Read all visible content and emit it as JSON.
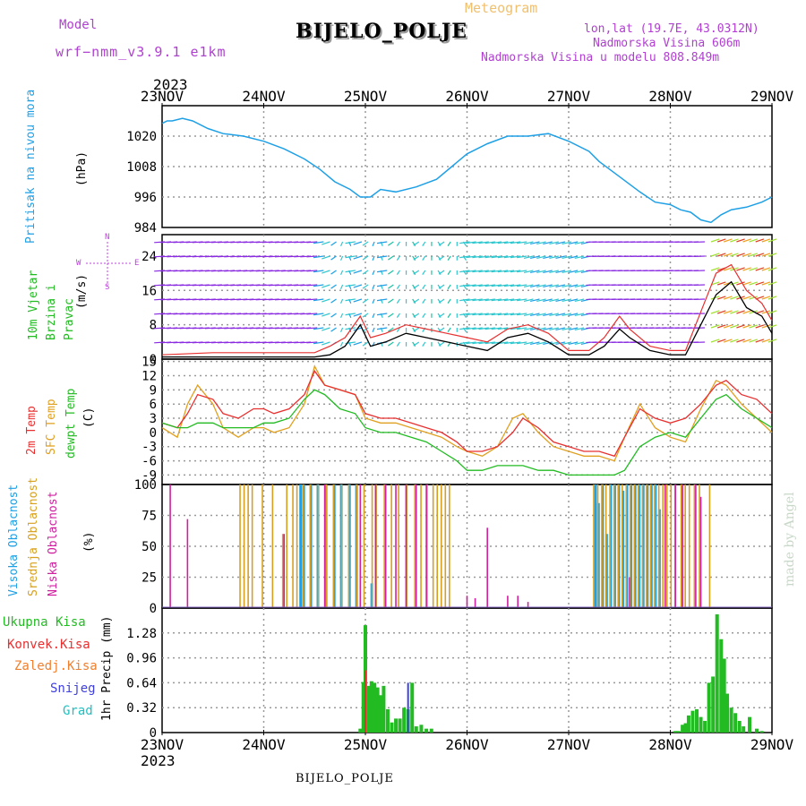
{
  "header": {
    "model_label": "Model",
    "model_name": "wrf−nmm_v3.9.1  e1km",
    "station": "BIJELO_POLJE",
    "product": "Meteogram",
    "lonlat": "lon,lat (19.7E, 43.0312N)",
    "altitude": "Nadmorska Visina 606m",
    "model_altitude": "Nadmorska Visina u modelu 808.849m",
    "year_top": "2023",
    "year_bottom": "2023",
    "footer_station": "BIJELO_POLJE",
    "credit": "made by Angel"
  },
  "colors": {
    "pressure": "#1ea0e6",
    "wind_label": "#22bb22",
    "wind_dir": "#c040e0",
    "temp2m": "#e83030",
    "sfc": "#e0a020",
    "dewpt": "#22bb22",
    "high_cloud": "#1ea0e6",
    "mid_cloud": "#d8a020",
    "low_cloud": "#d020a0",
    "total": "#22bb22",
    "conv": "#e83030",
    "frozen": "#f08030",
    "snow": "#4040e0",
    "graupel": "#20c0c0",
    "grid": "#999999"
  },
  "time_axis": {
    "ticks": [
      "23NOV",
      "24NOV",
      "25NOV",
      "26NOV",
      "27NOV",
      "28NOV",
      "29NOV"
    ]
  },
  "chart_data": [
    {
      "type": "line",
      "panel": "pressure",
      "ylabel_left": "Pritisak na nivou mora",
      "ylabel_unit": "(hPa)",
      "yticks": [
        984,
        996,
        1008,
        1020
      ],
      "ylim": [
        984,
        1032
      ],
      "x_days": [
        0,
        0.05,
        0.1,
        0.2,
        0.3,
        0.45,
        0.6,
        0.8,
        1.0,
        1.2,
        1.4,
        1.55,
        1.7,
        1.85,
        1.95,
        2.05,
        2.15,
        2.3,
        2.5,
        2.7,
        2.85,
        3.0,
        3.2,
        3.4,
        3.6,
        3.8,
        4.0,
        4.2,
        4.3,
        4.5,
        4.7,
        4.85,
        5.0,
        5.1,
        5.2,
        5.3,
        5.4,
        5.5,
        5.6,
        5.75,
        5.9,
        6.0
      ],
      "series": [
        {
          "values": [
            1025,
            1026,
            1026,
            1027,
            1026,
            1023,
            1021,
            1020,
            1018,
            1015,
            1011,
            1007,
            1002,
            999,
            996,
            996,
            999,
            998,
            1000,
            1003,
            1008,
            1013,
            1017,
            1020,
            1020,
            1021,
            1018,
            1014,
            1010,
            1004,
            998,
            994,
            993,
            991,
            990,
            987,
            986,
            989,
            991,
            992,
            994,
            996
          ]
        }
      ]
    },
    {
      "type": "line",
      "panel": "wind",
      "ylabel_left": "10m Vjetar Brzina i Pravac",
      "ylabel_unit": "(m/s)",
      "compass": {
        "n": "N",
        "s": "S",
        "e": "E",
        "w": "W"
      },
      "yticks": [
        0,
        8,
        16,
        24
      ],
      "ylim": [
        0,
        29
      ],
      "x_days": [
        0,
        0.5,
        1.0,
        1.5,
        1.65,
        1.8,
        1.95,
        2.05,
        2.2,
        2.4,
        2.6,
        2.8,
        3.0,
        3.2,
        3.4,
        3.6,
        3.8,
        4.0,
        4.2,
        4.35,
        4.5,
        4.6,
        4.8,
        5.0,
        5.15,
        5.3,
        5.45,
        5.6,
        5.75,
        5.9,
        6.0
      ],
      "series": [
        {
          "name": "speed",
          "values": [
            0.5,
            0.5,
            0.5,
            0.5,
            1,
            3,
            8,
            3,
            4,
            6,
            5,
            4,
            3,
            2,
            5,
            6,
            4,
            1,
            1,
            3,
            7,
            5,
            2,
            1,
            1,
            8,
            15,
            18,
            12,
            10,
            6
          ]
        },
        {
          "name": "gust",
          "values": [
            1,
            1.5,
            1.5,
            1.5,
            3,
            5,
            10,
            5,
            6,
            8,
            7,
            6,
            5,
            4,
            7,
            8,
            6,
            2,
            2,
            5,
            10,
            7,
            3,
            2,
            2,
            11,
            20,
            22,
            16,
            13,
            9
          ]
        }
      ]
    },
    {
      "type": "line",
      "panel": "temperature",
      "ylabel_left": [
        "2m Temp",
        "SFC Temp",
        "dewpt Temp"
      ],
      "ylabel_unit": "(C)",
      "yticks": [
        -9,
        -6,
        -3,
        0,
        3,
        6,
        9,
        12,
        15
      ],
      "ylim": [
        -11,
        15.5
      ],
      "x_days": [
        0,
        0.15,
        0.25,
        0.35,
        0.5,
        0.6,
        0.75,
        0.9,
        1.0,
        1.1,
        1.25,
        1.4,
        1.5,
        1.6,
        1.75,
        1.9,
        2.0,
        2.15,
        2.3,
        2.45,
        2.6,
        2.75,
        2.9,
        3.0,
        3.15,
        3.3,
        3.45,
        3.55,
        3.7,
        3.85,
        4.0,
        4.15,
        4.3,
        4.45,
        4.55,
        4.7,
        4.85,
        5.0,
        5.15,
        5.3,
        5.45,
        5.55,
        5.7,
        5.85,
        6.0
      ],
      "series": [
        {
          "name": "2m Temp",
          "values": [
            2,
            1,
            4,
            8,
            7,
            4,
            3,
            5,
            5,
            4,
            5,
            8,
            13,
            10,
            9,
            8,
            4,
            3,
            3,
            2,
            1,
            0,
            -2,
            -4,
            -4,
            -3,
            0,
            3,
            1,
            -2,
            -3,
            -4,
            -4,
            -5,
            -1,
            5,
            3,
            2,
            3,
            6,
            10,
            11,
            8,
            7,
            4
          ]
        },
        {
          "name": "SFC Temp",
          "values": [
            1,
            -1,
            6,
            10,
            6,
            1,
            -1,
            1,
            1,
            0,
            1,
            6,
            14,
            10,
            9,
            8,
            3,
            2,
            2,
            1,
            0,
            -1,
            -3,
            -4,
            -5,
            -3,
            3,
            4,
            0,
            -3,
            -4,
            -5,
            -5,
            -6,
            -1,
            6,
            1,
            -1,
            -2,
            5,
            11,
            10,
            6,
            3,
            0
          ]
        },
        {
          "name": "dewpt Temp",
          "values": [
            2,
            1,
            1,
            2,
            2,
            1,
            1,
            1,
            2,
            2,
            3,
            7,
            9,
            8,
            5,
            4,
            1,
            0,
            0,
            -1,
            -2,
            -4,
            -6,
            -8,
            -8,
            -7,
            -7,
            -7,
            -8,
            -8,
            -9,
            -9,
            -9,
            -9,
            -8,
            -3,
            -1,
            0,
            -1,
            3,
            7,
            8,
            5,
            3,
            1
          ]
        }
      ]
    },
    {
      "type": "bar",
      "panel": "cloud",
      "ylabel_left": [
        "Visoka Oblacnost",
        "Srednja Oblacnost",
        "Niska Oblacnost"
      ],
      "ylabel_unit": "(%)",
      "yticks": [
        0,
        25,
        50,
        75,
        100
      ],
      "ylim": [
        0,
        100
      ],
      "legend": [
        "Visoka Oblacnost",
        "Srednja Oblacnost",
        "Niska Oblacnost"
      ],
      "series": [
        {
          "name": "Visoka Oblacnost",
          "x_days": [
            1.35,
            1.38,
            1.45,
            1.52,
            1.6,
            1.68,
            1.75,
            1.83,
            1.9,
            2.05,
            4.25,
            4.28,
            4.32,
            4.36,
            4.4,
            4.44,
            4.48,
            4.52,
            4.56,
            4.6,
            4.64,
            4.68,
            4.72,
            4.76,
            4.8,
            4.84,
            4.88
          ],
          "values": [
            100,
            100,
            100,
            100,
            100,
            100,
            100,
            100,
            100,
            20,
            100,
            85,
            100,
            60,
            100,
            100,
            100,
            95,
            100,
            100,
            100,
            100,
            100,
            100,
            100,
            100,
            80
          ]
        },
        {
          "name": "Srednja Oblacnost",
          "x_days": [
            0.78,
            0.82,
            0.86,
            0.9,
            1.0,
            1.1,
            1.2,
            1.24,
            1.3,
            1.34,
            1.4,
            1.47,
            1.55,
            1.63,
            1.7,
            1.78,
            1.85,
            1.93,
            2.0,
            2.08,
            2.12,
            2.2,
            2.27,
            2.34,
            2.42,
            2.5,
            2.56,
            2.62,
            2.68,
            2.72,
            2.76,
            2.8,
            2.84,
            4.26,
            4.3,
            4.34,
            4.38,
            4.42,
            4.46,
            4.5,
            4.54,
            4.58,
            4.62,
            4.66,
            4.7,
            4.74,
            4.78,
            4.82,
            4.86,
            4.9,
            4.94,
            4.98,
            5.02,
            5.06,
            5.12,
            5.16,
            5.2,
            5.25,
            5.3,
            5.4
          ],
          "values": [
            100,
            100,
            100,
            100,
            100,
            100,
            60,
            100,
            100,
            100,
            100,
            100,
            100,
            100,
            100,
            100,
            100,
            100,
            100,
            100,
            100,
            100,
            100,
            100,
            100,
            100,
            100,
            100,
            100,
            100,
            100,
            100,
            100,
            100,
            100,
            100,
            100,
            100,
            100,
            100,
            100,
            100,
            100,
            100,
            100,
            100,
            100,
            100,
            100,
            100,
            100,
            100,
            100,
            100,
            100,
            100,
            100,
            100,
            100,
            100
          ]
        },
        {
          "name": "Niska Oblacnost",
          "x_days": [
            0.08,
            0.25,
            1.2,
            1.6,
            1.95,
            2.1,
            2.2,
            2.3,
            2.4,
            2.5,
            2.6,
            3.0,
            3.08,
            3.2,
            3.4,
            3.5,
            3.6,
            4.6,
            4.95,
            5.05,
            5.12,
            5.25,
            5.3
          ],
          "values": [
            100,
            72,
            60,
            100,
            100,
            100,
            100,
            100,
            100,
            100,
            100,
            10,
            8,
            65,
            10,
            10,
            5,
            25,
            100,
            100,
            100,
            100,
            90
          ]
        }
      ]
    },
    {
      "type": "bar",
      "panel": "precip",
      "ylabel_unit": "1hr Precip (mm)",
      "legend": [
        "Ukupna Kisa",
        "Konvek.Kisa",
        "Zaledj.Kisa",
        "Snijeg",
        "Grad"
      ],
      "yticks": [
        0,
        0.32,
        0.64,
        0.96,
        1.28
      ],
      "ylim": [
        0,
        1.6
      ],
      "series": [
        {
          "name": "Ukupna Kisa",
          "x_days": [
            1.95,
            1.98,
            2.0,
            2.03,
            2.06,
            2.09,
            2.12,
            2.15,
            2.18,
            2.22,
            2.26,
            2.3,
            2.34,
            2.38,
            2.42,
            2.46,
            2.5,
            2.55,
            2.6,
            2.65,
            5.05,
            5.08,
            5.12,
            5.15,
            5.18,
            5.22,
            5.26,
            5.3,
            5.34,
            5.38,
            5.42,
            5.46,
            5.5,
            5.53,
            5.56,
            5.6,
            5.64,
            5.68,
            5.72,
            5.78,
            5.85,
            5.9
          ],
          "values": [
            0.05,
            0.65,
            1.38,
            0.6,
            0.66,
            0.64,
            0.58,
            0.48,
            0.6,
            0.3,
            0.13,
            0.18,
            0.18,
            0.32,
            0.3,
            0.64,
            0.08,
            0.1,
            0.05,
            0.05,
            0.02,
            0.02,
            0.1,
            0.12,
            0.22,
            0.28,
            0.3,
            0.2,
            0.15,
            0.64,
            0.72,
            1.52,
            1.2,
            0.95,
            0.5,
            0.32,
            0.25,
            0.15,
            0.08,
            0.2,
            0.05,
            0.02
          ]
        },
        {
          "name": "Konvek.Kisa",
          "x_days": [
            2.0
          ],
          "values": [
            0.8
          ]
        },
        {
          "name": "Snijeg",
          "x_days": [
            2.42
          ],
          "values": [
            0.64
          ]
        }
      ]
    }
  ]
}
